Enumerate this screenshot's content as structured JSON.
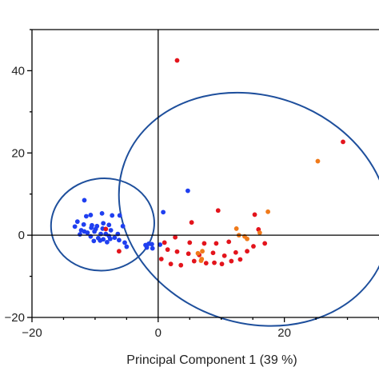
{
  "chart_data": {
    "type": "scatter",
    "title": "",
    "xlabel": "Principal Component 1 (39 %)",
    "ylabel": "",
    "xlim": [
      -20,
      35
    ],
    "ylim": [
      -20,
      50
    ],
    "xticks": [
      -20,
      0,
      20
    ],
    "yticks": [
      -20,
      0,
      20,
      40
    ],
    "grid": false,
    "legend": "none",
    "reference_lines": {
      "x": 0,
      "y": 0
    },
    "colors": {
      "blue": "#1f3ff0",
      "red": "#e3141c",
      "orange": "#f07a1a",
      "ellipse": "#1e4f9c",
      "axes": "#000000"
    },
    "series": [
      {
        "color": "blue",
        "points": [
          [
            -11.7,
            8.5
          ],
          [
            -11.4,
            4.6
          ],
          [
            -10.7,
            4.9
          ],
          [
            -8.9,
            5.3
          ],
          [
            -7.3,
            4.8
          ],
          [
            -6.1,
            4.8
          ],
          [
            -12.8,
            3.3
          ],
          [
            -11.8,
            2.6
          ],
          [
            -10.5,
            2.4
          ],
          [
            -13.2,
            2.1
          ],
          [
            -12.2,
            1.2
          ],
          [
            -10.6,
            1.8
          ],
          [
            -9.7,
            2.2
          ],
          [
            -8.7,
            2.9
          ],
          [
            -7.8,
            2.5
          ],
          [
            -5.6,
            2.2
          ],
          [
            -11.2,
            0.6
          ],
          [
            -10.1,
            0.9
          ],
          [
            -9.1,
            0.3
          ],
          [
            -8.3,
            0.3
          ],
          [
            -7.5,
            1.2
          ],
          [
            -6.4,
            0.3
          ],
          [
            -10.7,
            -0.3
          ],
          [
            -9.5,
            -0.7
          ],
          [
            -8.7,
            -1.0
          ],
          [
            -7.6,
            -0.9
          ],
          [
            -6.9,
            -0.6
          ],
          [
            -6.2,
            -1.2
          ],
          [
            -10.2,
            -1.4
          ],
          [
            -9.2,
            -1.3
          ],
          [
            -8.1,
            -1.7
          ],
          [
            -5.3,
            -1.8
          ],
          [
            -5.0,
            -2.8
          ],
          [
            -12.4,
            0.2
          ],
          [
            -11.7,
            0.9
          ],
          [
            -9.9,
            1.5
          ],
          [
            -8.8,
            1.6
          ],
          [
            -7.8,
            -0.2
          ],
          [
            -2.0,
            -2.4
          ],
          [
            -1.5,
            -2.1
          ],
          [
            -1.0,
            -2.2
          ],
          [
            -1.8,
            -3.0
          ],
          [
            -0.9,
            -3.2
          ],
          [
            4.7,
            10.8
          ],
          [
            0.8,
            5.6
          ],
          [
            0.3,
            -2.3
          ]
        ]
      },
      {
        "color": "red",
        "points": [
          [
            3.0,
            42.5
          ],
          [
            29.3,
            22.7
          ],
          [
            9.5,
            6.0
          ],
          [
            15.3,
            5.0
          ],
          [
            5.3,
            3.1
          ],
          [
            1.0,
            -1.8
          ],
          [
            2.7,
            -0.5
          ],
          [
            5.0,
            -1.8
          ],
          [
            7.3,
            -2.0
          ],
          [
            9.2,
            -2.0
          ],
          [
            11.2,
            -1.6
          ],
          [
            1.5,
            -3.5
          ],
          [
            3.0,
            -4.0
          ],
          [
            4.8,
            -4.5
          ],
          [
            6.5,
            -4.8
          ],
          [
            8.7,
            -4.3
          ],
          [
            10.5,
            -5.0
          ],
          [
            12.3,
            -4.2
          ],
          [
            14.1,
            -3.9
          ],
          [
            0.5,
            -5.8
          ],
          [
            2.0,
            -7.0
          ],
          [
            3.6,
            -7.3
          ],
          [
            5.7,
            -6.3
          ],
          [
            7.6,
            -6.8
          ],
          [
            8.9,
            -6.7
          ],
          [
            10.1,
            -7.0
          ],
          [
            11.6,
            -6.3
          ],
          [
            13.0,
            -5.9
          ],
          [
            15.1,
            -2.7
          ],
          [
            16.9,
            -2.0
          ],
          [
            15.9,
            1.4
          ],
          [
            -6.2,
            -3.9
          ],
          [
            -8.3,
            1.5
          ]
        ]
      },
      {
        "color": "orange",
        "points": [
          [
            25.3,
            18.0
          ],
          [
            17.4,
            5.7
          ],
          [
            12.4,
            1.6
          ],
          [
            13.7,
            -0.3
          ],
          [
            12.8,
            0.0
          ],
          [
            14.1,
            -0.9
          ],
          [
            16.1,
            0.6
          ],
          [
            7.0,
            -3.9
          ],
          [
            6.3,
            -4.4
          ],
          [
            6.9,
            -5.8
          ],
          [
            6.8,
            -6.2
          ]
        ]
      }
    ],
    "ellipses": [
      {
        "cx": -8.8,
        "cy": 2.6,
        "rx": 8.2,
        "ry": 11.2,
        "angle_deg": -8
      },
      {
        "cx": 15.2,
        "cy": 6.3,
        "rx": 18.0,
        "ry": 33.5,
        "angle_deg": -70
      }
    ]
  }
}
